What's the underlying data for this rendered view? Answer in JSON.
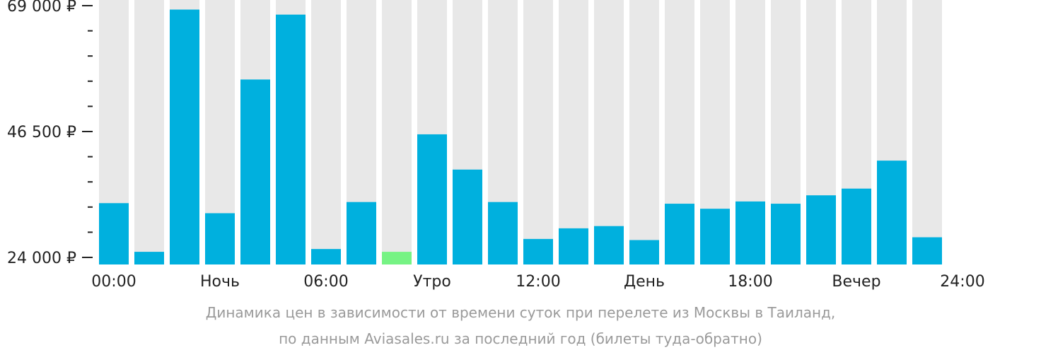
{
  "chart_data": {
    "type": "bar",
    "y_tick_labels": [
      "69 000 ₽",
      "46 500 ₽",
      "24 000 ₽"
    ],
    "y_tick_values": [
      69000,
      46500,
      24000
    ],
    "ylim": [
      24000,
      69000
    ],
    "x_tick_labels": [
      "00:00",
      "Ночь",
      "06:00",
      "Утро",
      "12:00",
      "День",
      "18:00",
      "Вечер",
      "24:00"
    ],
    "values": [
      33700,
      25000,
      68300,
      31900,
      55800,
      67400,
      25500,
      33900,
      25000,
      46000,
      39700,
      33900,
      27300,
      29200,
      29600,
      27100,
      33600,
      32700,
      34000,
      33600,
      35100,
      36300,
      41300,
      27600
    ],
    "highlight_index": 8,
    "colors": {
      "bar": "#00b0de",
      "highlight": "#76f384",
      "track": "#e8e8e8",
      "axis": "#222222",
      "text": "#222222",
      "caption": "#9a9a9a"
    }
  },
  "caption": {
    "line1": "Динамика цен в зависимости от времени суток при перелете из Москвы в Таиланд,",
    "line2": "по данным Aviasales.ru за последний год (билеты туда-обратно)"
  }
}
